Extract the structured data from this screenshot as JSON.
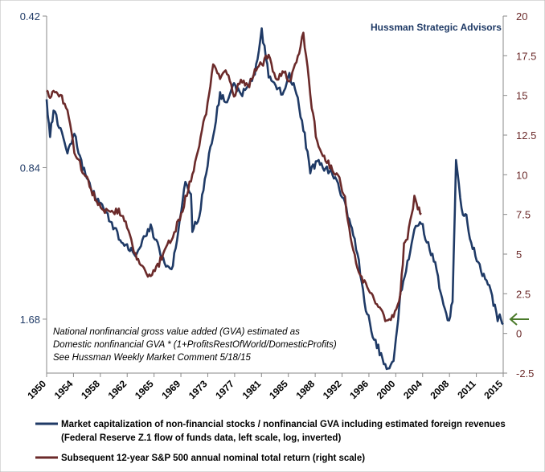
{
  "source_label": "Hussman Strategic Advisors",
  "note_lines": [
    "National nonfinancial gross value added (GVA) estimated as",
    "Domestic nonfinancial GVA  * (1+ProfitsRestOfWorld/DomesticProfits)",
    "See Hussman Weekly Market Comment 5/18/15"
  ],
  "legend": [
    {
      "lines": [
        "Market capitalization of non-financial stocks / nonfinancial GVA including estimated foreign revenues",
        "(Federal Reserve Z.1 flow of funds data, left scale, log, inverted)"
      ],
      "color": "#1f3a66"
    },
    {
      "lines": [
        "Subsequent 12-year S&P 500 annual nominal total return (right scale)"
      ],
      "color": "#6b2a2a"
    }
  ],
  "colors": {
    "primary": "#1f3a66",
    "secondary": "#6b2a2a",
    "arrow": "#4a7a2a"
  },
  "chart_data": {
    "type": "line",
    "title": "",
    "x_ticks": [
      "1950",
      "1954",
      "1958",
      "1962",
      "1965",
      "1969",
      "1973",
      "1977",
      "1981",
      "1985",
      "1988",
      "1992",
      "1996",
      "2000",
      "2004",
      "2008",
      "2011",
      "2015"
    ],
    "x_range": [
      1950,
      2015.8
    ],
    "left_axis": {
      "scale": "log",
      "inverted": true,
      "range": [
        0.42,
        2.15
      ],
      "ticks": [
        0.42,
        0.84,
        1.68
      ],
      "tick_labels": [
        "0.42",
        "0.84",
        "1.68"
      ]
    },
    "right_axis": {
      "range": [
        -2.5,
        20
      ],
      "ticks": [
        -2.5,
        0,
        2.5,
        5,
        7.5,
        10,
        12.5,
        15,
        17.5,
        20
      ],
      "tick_labels": [
        "-2.5",
        "0",
        "2.5",
        "5",
        "7.5",
        "10",
        "12.5",
        "15",
        "17.5",
        "20"
      ]
    },
    "grid": false,
    "series": [
      {
        "name": "Market capitalization of non-financial stocks / nonfinancial GVA including estimated foreign revenues",
        "axis": "left",
        "points": [
          [
            1950,
            0.62
          ],
          [
            1950.5,
            0.72
          ],
          [
            1951,
            0.65
          ],
          [
            1952,
            0.7
          ],
          [
            1953,
            0.78
          ],
          [
            1954,
            0.72
          ],
          [
            1955,
            0.82
          ],
          [
            1956,
            0.9
          ],
          [
            1957,
            0.96
          ],
          [
            1958,
            1.0
          ],
          [
            1959,
            1.06
          ],
          [
            1960,
            1.12
          ],
          [
            1961,
            1.2
          ],
          [
            1962,
            1.22
          ],
          [
            1963,
            1.25
          ],
          [
            1964,
            1.15
          ],
          [
            1965,
            1.1
          ],
          [
            1966,
            1.2
          ],
          [
            1967,
            1.3
          ],
          [
            1968,
            1.35
          ],
          [
            1969,
            1.12
          ],
          [
            1970,
            0.9
          ],
          [
            1970.8,
            0.94
          ],
          [
            1971,
            1.12
          ],
          [
            1972,
            1.05
          ],
          [
            1973,
            0.85
          ],
          [
            1974,
            0.72
          ],
          [
            1975,
            0.6
          ],
          [
            1976,
            0.62
          ],
          [
            1977,
            0.58
          ],
          [
            1978,
            0.6
          ],
          [
            1979,
            0.58
          ],
          [
            1980,
            0.55
          ],
          [
            1981,
            0.45
          ],
          [
            1982,
            0.55
          ],
          [
            1983,
            0.58
          ],
          [
            1984,
            0.6
          ],
          [
            1985,
            0.55
          ],
          [
            1986,
            0.6
          ],
          [
            1987,
            0.7
          ],
          [
            1988,
            0.85
          ],
          [
            1989,
            0.82
          ],
          [
            1990,
            0.84
          ],
          [
            1991,
            0.86
          ],
          [
            1992,
            0.9
          ],
          [
            1993,
            1.0
          ],
          [
            1994,
            1.1
          ],
          [
            1995,
            1.3
          ],
          [
            1996,
            1.6
          ],
          [
            1997,
            1.8
          ],
          [
            1998,
            1.95
          ],
          [
            1999,
            2.1
          ],
          [
            2000,
            2.05
          ],
          [
            2000.5,
            1.75
          ],
          [
            2001,
            1.5
          ],
          [
            2002,
            1.3
          ],
          [
            2003,
            1.12
          ],
          [
            2004,
            1.08
          ],
          [
            2005,
            1.2
          ],
          [
            2006,
            1.3
          ],
          [
            2007,
            1.55
          ],
          [
            2008,
            1.7
          ],
          [
            2008.5,
            1.55
          ],
          [
            2009,
            0.82
          ],
          [
            2010,
            1.05
          ],
          [
            2010.5,
            1.05
          ],
          [
            2011,
            1.15
          ],
          [
            2012,
            1.28
          ],
          [
            2013,
            1.38
          ],
          [
            2014,
            1.48
          ],
          [
            2015,
            1.68
          ],
          [
            2015.3,
            1.65
          ],
          [
            2015.8,
            1.72
          ]
        ]
      },
      {
        "name": "Subsequent 12-year S&P 500 annual nominal total return",
        "axis": "right",
        "points": [
          [
            1950,
            15.2
          ],
          [
            1950.5,
            14.8
          ],
          [
            1951,
            15.5
          ],
          [
            1952,
            15.0
          ],
          [
            1953,
            14.2
          ],
          [
            1954,
            11.5
          ],
          [
            1955,
            10.5
          ],
          [
            1956,
            9.5
          ],
          [
            1957,
            8.5
          ],
          [
            1958,
            8.0
          ],
          [
            1959,
            7.5
          ],
          [
            1960,
            7.8
          ],
          [
            1961,
            7.5
          ],
          [
            1962,
            6.0
          ],
          [
            1963,
            4.8
          ],
          [
            1964,
            4.0
          ],
          [
            1965,
            3.5
          ],
          [
            1966,
            4.2
          ],
          [
            1967,
            5.2
          ],
          [
            1968,
            6.0
          ],
          [
            1969,
            7.0
          ],
          [
            1970,
            8.5
          ],
          [
            1971,
            10.0
          ],
          [
            1972,
            12.0
          ],
          [
            1973,
            14.0
          ],
          [
            1974,
            17.0
          ],
          [
            1975,
            16.0
          ],
          [
            1976,
            16.5
          ],
          [
            1977,
            15.0
          ],
          [
            1978,
            16.0
          ],
          [
            1979,
            15.5
          ],
          [
            1980,
            16.5
          ],
          [
            1981,
            17.0
          ],
          [
            1982,
            17.5
          ],
          [
            1983,
            16.0
          ],
          [
            1984,
            16.5
          ],
          [
            1985,
            16.0
          ],
          [
            1986,
            17.0
          ],
          [
            1987,
            19.0
          ],
          [
            1988,
            15.0
          ],
          [
            1989,
            12.0
          ],
          [
            1990,
            11.0
          ],
          [
            1991,
            10.5
          ],
          [
            1992,
            10.0
          ],
          [
            1993,
            8.5
          ],
          [
            1994,
            5.5
          ],
          [
            1995,
            4.0
          ],
          [
            1996,
            3.0
          ],
          [
            1997,
            2.5
          ],
          [
            1998,
            1.5
          ],
          [
            1999,
            0.8
          ],
          [
            2000,
            1.0
          ],
          [
            2001,
            2.5
          ],
          [
            2001.5,
            5.5
          ],
          [
            2002,
            6.0
          ],
          [
            2003,
            8.5
          ],
          [
            2003.5,
            8.0
          ],
          [
            2004,
            7.5
          ]
        ]
      }
    ]
  }
}
